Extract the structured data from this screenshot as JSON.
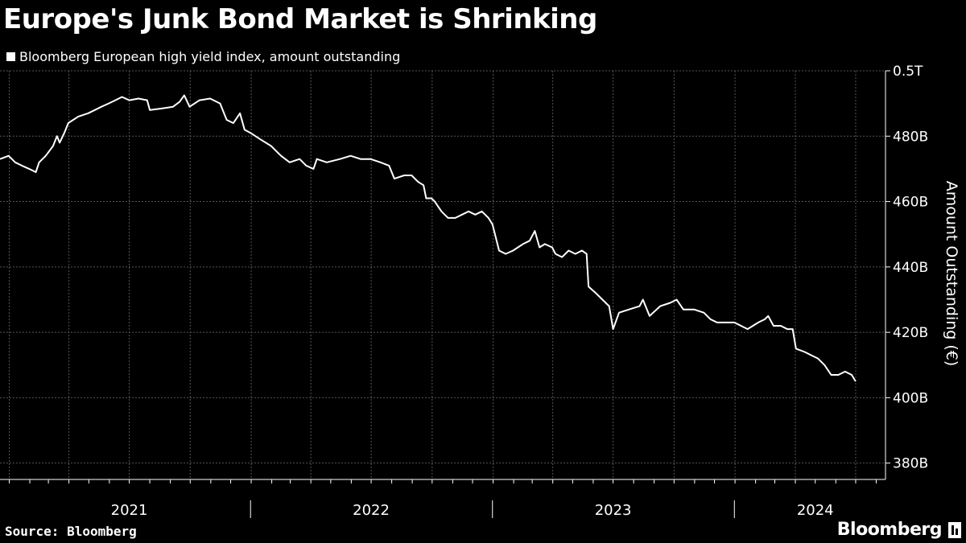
{
  "title": "Europe's Junk Bond Market is Shrinking",
  "source": "Source: Bloomberg",
  "brand": "Bloomberg",
  "brand_icon": "bloomberg-terminal-icon",
  "colors": {
    "background": "#000000",
    "line": "#ffffff",
    "grid": "#555555",
    "text": "#ffffff"
  },
  "chart_data": {
    "type": "line",
    "title": "",
    "ylabel": "Amount Outstanding (€)",
    "ylim": [
      375,
      500
    ],
    "yticks": [
      {
        "value": 500,
        "label": "0.5T"
      },
      {
        "value": 480,
        "label": "480B"
      },
      {
        "value": 460,
        "label": "460B"
      },
      {
        "value": 440,
        "label": "440B"
      },
      {
        "value": 420,
        "label": "420B"
      },
      {
        "value": 400,
        "label": "400B"
      },
      {
        "value": 380,
        "label": "380B"
      }
    ],
    "xlim": [
      "2020-12-18",
      "2024-08-15"
    ],
    "xlabels": [
      {
        "label": "2021",
        "date": "2021-07-01"
      },
      {
        "label": "2022",
        "date": "2022-07-01"
      },
      {
        "label": "2023",
        "date": "2023-07-01"
      },
      {
        "label": "2024",
        "date": "2024-05-01"
      }
    ],
    "year_separators": [
      "2021-12-31",
      "2022-12-31",
      "2023-12-31"
    ],
    "legend_position": "top-left",
    "grid": true,
    "series": [
      {
        "name": "Bloomberg European high yield index, amount outstanding",
        "points": [
          [
            "2020-12-18",
            473
          ],
          [
            "2020-12-31",
            474
          ],
          [
            "2021-01-10",
            472
          ],
          [
            "2021-01-20",
            471
          ],
          [
            "2021-01-31",
            470
          ],
          [
            "2021-02-10",
            469
          ],
          [
            "2021-02-15",
            472
          ],
          [
            "2021-02-25",
            474
          ],
          [
            "2021-03-08",
            477
          ],
          [
            "2021-03-14",
            480
          ],
          [
            "2021-03-18",
            478
          ],
          [
            "2021-03-25",
            481
          ],
          [
            "2021-03-31",
            484
          ],
          [
            "2021-04-15",
            486
          ],
          [
            "2021-04-30",
            487
          ],
          [
            "2021-05-10",
            488
          ],
          [
            "2021-05-20",
            489
          ],
          [
            "2021-05-31",
            490
          ],
          [
            "2021-06-10",
            491
          ],
          [
            "2021-06-20",
            492
          ],
          [
            "2021-07-01",
            491
          ],
          [
            "2021-07-15",
            491.5
          ],
          [
            "2021-07-28",
            491
          ],
          [
            "2021-08-01",
            488
          ],
          [
            "2021-08-20",
            488.5
          ],
          [
            "2021-09-05",
            489
          ],
          [
            "2021-09-15",
            490.5
          ],
          [
            "2021-09-22",
            492.5
          ],
          [
            "2021-09-30",
            489
          ],
          [
            "2021-10-15",
            491
          ],
          [
            "2021-10-31",
            491.5
          ],
          [
            "2021-11-15",
            490
          ],
          [
            "2021-11-25",
            485
          ],
          [
            "2021-12-05",
            484
          ],
          [
            "2021-12-15",
            487
          ],
          [
            "2021-12-22",
            482
          ],
          [
            "2021-12-31",
            481
          ],
          [
            "2022-01-15",
            479
          ],
          [
            "2022-01-31",
            477
          ],
          [
            "2022-02-15",
            474
          ],
          [
            "2022-02-28",
            472
          ],
          [
            "2022-03-15",
            473
          ],
          [
            "2022-03-25",
            471
          ],
          [
            "2022-04-05",
            470
          ],
          [
            "2022-04-10",
            473
          ],
          [
            "2022-04-25",
            472
          ],
          [
            "2022-05-15",
            473
          ],
          [
            "2022-05-31",
            474
          ],
          [
            "2022-06-15",
            473
          ],
          [
            "2022-06-30",
            473
          ],
          [
            "2022-07-15",
            472
          ],
          [
            "2022-07-28",
            471
          ],
          [
            "2022-08-05",
            467
          ],
          [
            "2022-08-20",
            468
          ],
          [
            "2022-08-31",
            468
          ],
          [
            "2022-09-10",
            466
          ],
          [
            "2022-09-18",
            465
          ],
          [
            "2022-09-22",
            461
          ],
          [
            "2022-09-30",
            461
          ],
          [
            "2022-10-05",
            460
          ],
          [
            "2022-10-15",
            457
          ],
          [
            "2022-10-25",
            455
          ],
          [
            "2022-11-05",
            455
          ],
          [
            "2022-11-15",
            456
          ],
          [
            "2022-11-25",
            457
          ],
          [
            "2022-12-05",
            456
          ],
          [
            "2022-12-15",
            457
          ],
          [
            "2022-12-25",
            455
          ],
          [
            "2022-12-31",
            453
          ],
          [
            "2023-01-10",
            445
          ],
          [
            "2023-01-20",
            444
          ],
          [
            "2023-01-31",
            445
          ],
          [
            "2023-02-15",
            447
          ],
          [
            "2023-02-25",
            448
          ],
          [
            "2023-03-05",
            451
          ],
          [
            "2023-03-12",
            446
          ],
          [
            "2023-03-20",
            447
          ],
          [
            "2023-03-31",
            446
          ],
          [
            "2023-04-05",
            444
          ],
          [
            "2023-04-15",
            443
          ],
          [
            "2023-04-25",
            445
          ],
          [
            "2023-05-05",
            444
          ],
          [
            "2023-05-15",
            445
          ],
          [
            "2023-05-22",
            444
          ],
          [
            "2023-05-25",
            434
          ],
          [
            "2023-06-05",
            432
          ],
          [
            "2023-06-15",
            430
          ],
          [
            "2023-06-25",
            428
          ],
          [
            "2023-07-01",
            421
          ],
          [
            "2023-07-10",
            426
          ],
          [
            "2023-07-25",
            427
          ],
          [
            "2023-08-10",
            428
          ],
          [
            "2023-08-15",
            430
          ],
          [
            "2023-08-25",
            425
          ],
          [
            "2023-09-10",
            428
          ],
          [
            "2023-09-25",
            429
          ],
          [
            "2023-10-05",
            430
          ],
          [
            "2023-10-15",
            427
          ],
          [
            "2023-10-31",
            427
          ],
          [
            "2023-11-15",
            426
          ],
          [
            "2023-11-25",
            424
          ],
          [
            "2023-12-05",
            423
          ],
          [
            "2023-12-20",
            423
          ],
          [
            "2023-12-31",
            423
          ],
          [
            "2024-01-10",
            422
          ],
          [
            "2024-01-20",
            421
          ],
          [
            "2024-02-05",
            423
          ],
          [
            "2024-02-15",
            424
          ],
          [
            "2024-02-20",
            425
          ],
          [
            "2024-02-28",
            422
          ],
          [
            "2024-03-10",
            422
          ],
          [
            "2024-03-20",
            421
          ],
          [
            "2024-03-28",
            421
          ],
          [
            "2024-04-02",
            415
          ],
          [
            "2024-04-15",
            414
          ],
          [
            "2024-04-25",
            413
          ],
          [
            "2024-05-05",
            412
          ],
          [
            "2024-05-15",
            410
          ],
          [
            "2024-05-25",
            407
          ],
          [
            "2024-06-05",
            407
          ],
          [
            "2024-06-15",
            408
          ],
          [
            "2024-06-25",
            407
          ],
          [
            "2024-07-01",
            405
          ]
        ]
      }
    ]
  }
}
